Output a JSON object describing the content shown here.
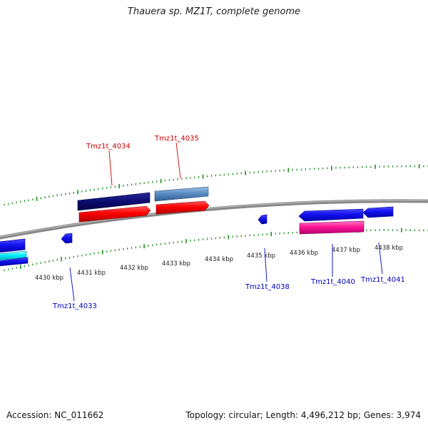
{
  "title": "Thauera sp. MZ1T, complete genome",
  "footer": {
    "accession": "Accession: NC_011662",
    "summary": "Topology: circular; Length: 4,496,212 bp; Genes: 3,974"
  },
  "colors": {
    "backbone": "#7a7a7a",
    "tick": "#1f8f1f",
    "label_top": "#cc0000",
    "label_bottom": "#0000bb"
  },
  "scale_labels": [
    "4430 kbp",
    "4431 kbp",
    "4432 kbp",
    "4433 kbp",
    "4434 kbp",
    "4435 kbp",
    "4436 kbp",
    "4437 kbp",
    "4438 kbp"
  ],
  "gene_labels": {
    "top": [
      "Tmz1t_4034",
      "Tmz1t_4035"
    ],
    "bottom": [
      "Tmz1t_4033",
      "Tmz1t_4038",
      "Tmz1t_4040",
      "Tmz1t_4041"
    ]
  }
}
